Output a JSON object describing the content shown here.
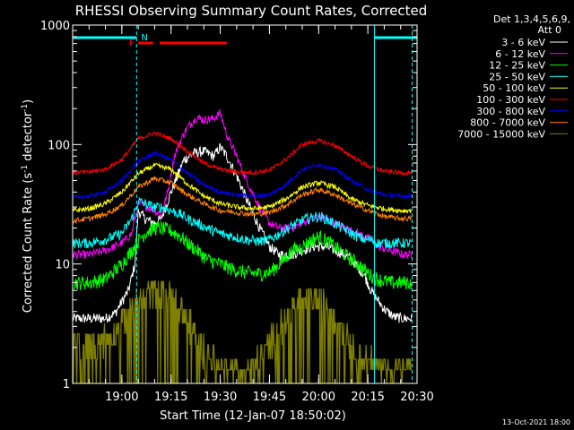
{
  "chart_data": {
    "type": "line",
    "title": "RHESSI Observing Summary Count Rates, Corrected",
    "xlabel": "Start Time (12-Jan-07 18:50:02)",
    "ylabel": "Corrected Count Rate (s",
    "ylabel_sup": "-1",
    "ylabel_mid": " detector",
    "ylabel_sup2": "-1",
    "ylabel_end": ")",
    "y_scale": "log",
    "ylim": [
      1,
      1000
    ],
    "yticks": [
      {
        "v": 1,
        "label": "1"
      },
      {
        "v": 10,
        "label": "10"
      },
      {
        "v": 100,
        "label": "100"
      },
      {
        "v": 1000,
        "label": "1000"
      }
    ],
    "xlim_minutes": [
      -5.0,
      100.0
    ],
    "xticks": [
      {
        "m": 10,
        "label": "19:00"
      },
      {
        "m": 25,
        "label": "19:15"
      },
      {
        "m": 40,
        "label": "19:30"
      },
      {
        "m": 55,
        "label": "19:45"
      },
      {
        "m": 70,
        "label": "20:00"
      },
      {
        "m": 85,
        "label": "20:15"
      },
      {
        "m": 100,
        "label": "20:30"
      }
    ],
    "legend_header": [
      "Det 1,3,4,5,6,9,",
      "Att 0"
    ],
    "legend_position": "right",
    "footer_date": "13-Oct-2021 18:00",
    "flags": {
      "N_label": "N",
      "F_label": "F",
      "night_segments": [
        [
          -5,
          14.5
        ],
        [
          87.0,
          100.0
        ]
      ],
      "flare_segments": [
        [
          15.0,
          19.5
        ],
        [
          21.5,
          42.0
        ]
      ],
      "vlines": [
        14.5,
        87.0,
        98.5
      ]
    },
    "series": [
      {
        "name": "3 - 6 keV",
        "color": "#ffffff",
        "x": [
          -5,
          0,
          5,
          8,
          12,
          14,
          15,
          17,
          20,
          22,
          25,
          27,
          29,
          32,
          35,
          38,
          40,
          42,
          45,
          48,
          52,
          55,
          58,
          62,
          65,
          68,
          70,
          72,
          75,
          78,
          80,
          84,
          86,
          88,
          90,
          93,
          96,
          98.5
        ],
        "y": [
          3.5,
          3.5,
          3.5,
          3.9,
          6,
          10,
          28,
          24,
          22,
          24,
          40,
          55,
          75,
          85,
          88,
          80,
          95,
          80,
          55,
          35,
          20,
          14,
          12,
          12,
          13,
          14,
          14,
          14,
          13,
          12,
          11,
          8,
          6,
          5,
          4.2,
          3.6,
          3.5,
          3.5
        ]
      },
      {
        "name": "6 - 12 keV",
        "color": "#ff00ff",
        "x": [
          -5,
          0,
          5,
          10,
          13,
          15,
          18,
          20,
          22,
          24,
          26,
          28,
          30,
          33,
          35,
          38,
          40,
          42,
          45,
          48,
          52,
          55,
          58,
          62,
          65,
          68,
          70,
          72,
          75,
          78,
          82,
          86,
          88,
          92,
          96,
          98.5
        ],
        "y": [
          12,
          12,
          13,
          15,
          18,
          32,
          30,
          28,
          26,
          40,
          80,
          110,
          140,
          170,
          160,
          165,
          185,
          120,
          80,
          50,
          30,
          22,
          20,
          20,
          22,
          24,
          25,
          24,
          22,
          20,
          18,
          16,
          14,
          13,
          12,
          12
        ]
      },
      {
        "name": "12 - 25 keV",
        "color": "#00ff00",
        "x": [
          -5,
          0,
          5,
          10,
          13,
          16,
          18,
          20,
          22,
          25,
          28,
          30,
          33,
          36,
          40,
          44,
          48,
          52,
          55,
          58,
          62,
          65,
          68,
          70,
          72,
          75,
          78,
          82,
          86,
          88,
          92,
          96,
          98.5
        ],
        "y": [
          7,
          7,
          7.5,
          10,
          13,
          17,
          19,
          20,
          20,
          19,
          17,
          15,
          13,
          11,
          10,
          9,
          8.5,
          8.3,
          8.5,
          10,
          13,
          14,
          16,
          17,
          16,
          14,
          12,
          10,
          8,
          7.5,
          7,
          7,
          7
        ]
      },
      {
        "name": "25 - 50 keV",
        "color": "#00ffff",
        "x": [
          -5,
          0,
          5,
          10,
          13,
          14.5,
          15,
          17,
          20,
          22,
          25,
          28,
          30,
          33,
          36,
          40,
          44,
          48,
          52,
          55,
          58,
          62,
          66,
          70,
          72,
          76,
          80,
          84,
          86,
          88,
          92,
          96,
          98.5
        ],
        "y": [
          15,
          15,
          16,
          18,
          24,
          30,
          34,
          32,
          30,
          30,
          28,
          26,
          24,
          22,
          20,
          18,
          17,
          16,
          15.5,
          16,
          18,
          21,
          24,
          25,
          24,
          21,
          18,
          16,
          16,
          15,
          15,
          15,
          15
        ]
      },
      {
        "name": "50 - 100 keV",
        "color": "#ffff00",
        "x": [
          -5,
          0,
          5,
          10,
          15,
          20,
          25,
          30,
          35,
          40,
          45,
          50,
          55,
          60,
          65,
          70,
          75,
          80,
          85,
          90,
          95,
          98.5
        ],
        "y": [
          28,
          29,
          32,
          40,
          57,
          67,
          62,
          47,
          37,
          32,
          30,
          29,
          30,
          35,
          44,
          48,
          44,
          35,
          31,
          29,
          28,
          28
        ]
      },
      {
        "name": "100 - 300 keV",
        "color": "#ff0000",
        "x": [
          -5,
          0,
          5,
          10,
          15,
          20,
          25,
          30,
          35,
          40,
          45,
          50,
          55,
          60,
          65,
          70,
          75,
          80,
          85,
          90,
          95,
          98.5
        ],
        "y": [
          58,
          59,
          62,
          75,
          112,
          125,
          112,
          88,
          70,
          62,
          59,
          58,
          61,
          75,
          100,
          108,
          98,
          80,
          66,
          60,
          58,
          58
        ]
      },
      {
        "name": "300 - 800 keV",
        "color": "#0000ff",
        "x": [
          -5,
          0,
          5,
          10,
          15,
          20,
          25,
          30,
          35,
          40,
          45,
          50,
          55,
          60,
          65,
          70,
          75,
          80,
          85,
          90,
          95,
          98.5
        ],
        "y": [
          36,
          37,
          40,
          50,
          72,
          85,
          75,
          58,
          46,
          40,
          38,
          37,
          38,
          46,
          62,
          68,
          62,
          50,
          42,
          38,
          37,
          37
        ]
      },
      {
        "name": "800 - 7000 keV",
        "color": "#ff8000",
        "x": [
          -5,
          0,
          5,
          10,
          15,
          20,
          25,
          30,
          35,
          40,
          45,
          50,
          55,
          60,
          65,
          70,
          75,
          80,
          85,
          90,
          95,
          98.5
        ],
        "y": [
          23,
          24,
          26,
          31,
          44,
          52,
          48,
          38,
          32,
          28,
          27,
          26,
          27,
          31,
          38,
          42,
          38,
          32,
          28,
          25,
          24,
          24
        ]
      },
      {
        "name": "7000 - 15000 keV",
        "color": "#808000",
        "x": [
          -5,
          -2,
          2,
          6,
          10,
          13,
          16,
          19,
          22,
          25,
          28,
          31,
          34,
          37,
          40,
          43,
          46,
          49,
          52,
          55,
          58,
          61,
          64,
          67,
          70,
          73,
          76,
          79,
          82,
          85,
          88,
          91,
          94,
          98.5
        ],
        "y": [
          2.2,
          2.1,
          2.2,
          2.5,
          3.2,
          4.2,
          5.2,
          6,
          6.2,
          5.5,
          4.2,
          3,
          2.1,
          1.6,
          1.35,
          1.3,
          1.3,
          1.35,
          1.6,
          2.1,
          2.9,
          4,
          4.9,
          5.2,
          5,
          4.3,
          3.4,
          2.5,
          1.8,
          1.5,
          1.4,
          1.4,
          1.4,
          1.4
        ]
      }
    ]
  }
}
